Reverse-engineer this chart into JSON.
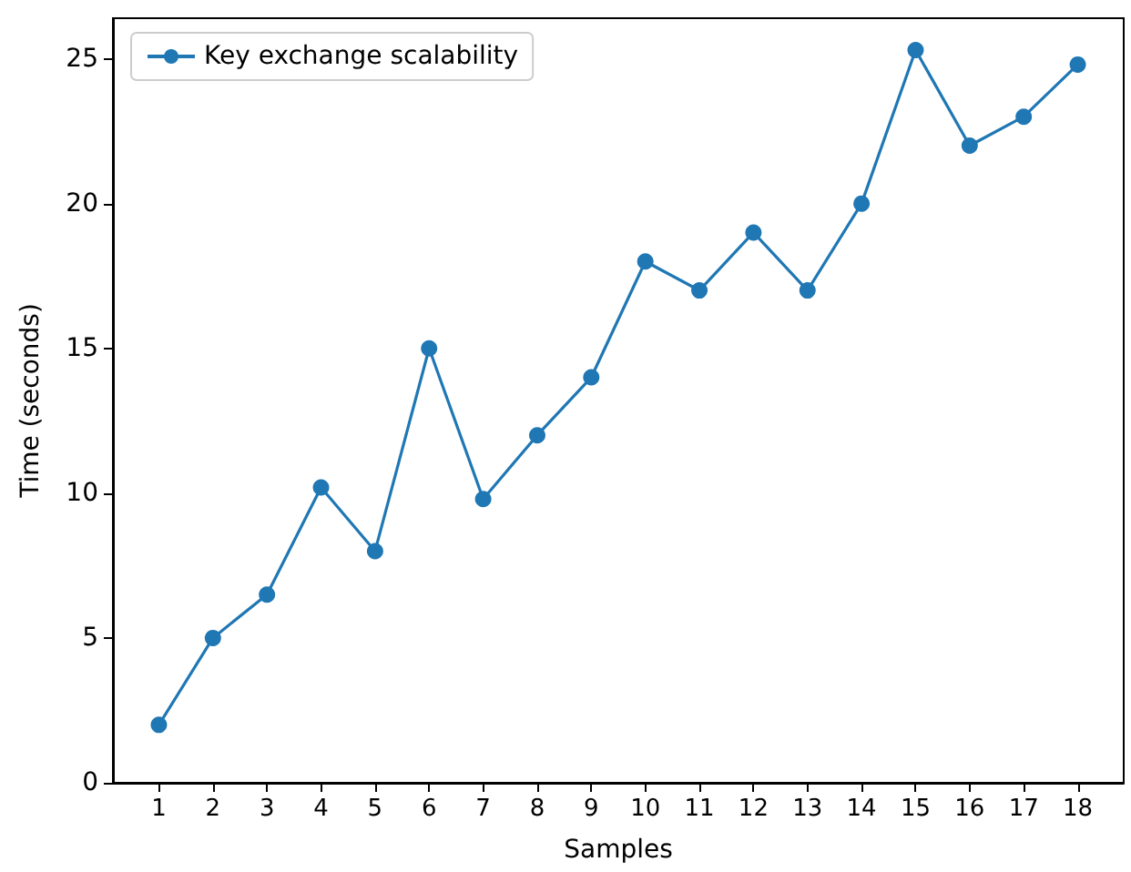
{
  "chart_data": {
    "type": "line",
    "xlabel": "Samples",
    "ylabel": "Time (seconds)",
    "x": [
      1,
      2,
      3,
      4,
      5,
      6,
      7,
      8,
      9,
      10,
      11,
      12,
      13,
      14,
      15,
      16,
      17,
      18
    ],
    "series": [
      {
        "name": "Key exchange scalability",
        "color": "#1f77b4",
        "values": [
          2,
          5,
          6.5,
          10.2,
          8,
          15,
          9.8,
          12,
          14,
          18,
          17,
          19,
          17,
          20,
          25.3,
          22,
          23,
          24.8
        ]
      }
    ],
    "xlim": [
      0.15,
      18.85
    ],
    "xticks": [
      1,
      2,
      3,
      4,
      5,
      6,
      7,
      8,
      9,
      10,
      11,
      12,
      13,
      14,
      15,
      16,
      17,
      18
    ],
    "ylim": [
      0,
      26.4
    ],
    "yticks": [
      0,
      5,
      10,
      15,
      20,
      25
    ],
    "grid": false,
    "legend": "top left",
    "marker": "circle",
    "line_style": "solid"
  }
}
